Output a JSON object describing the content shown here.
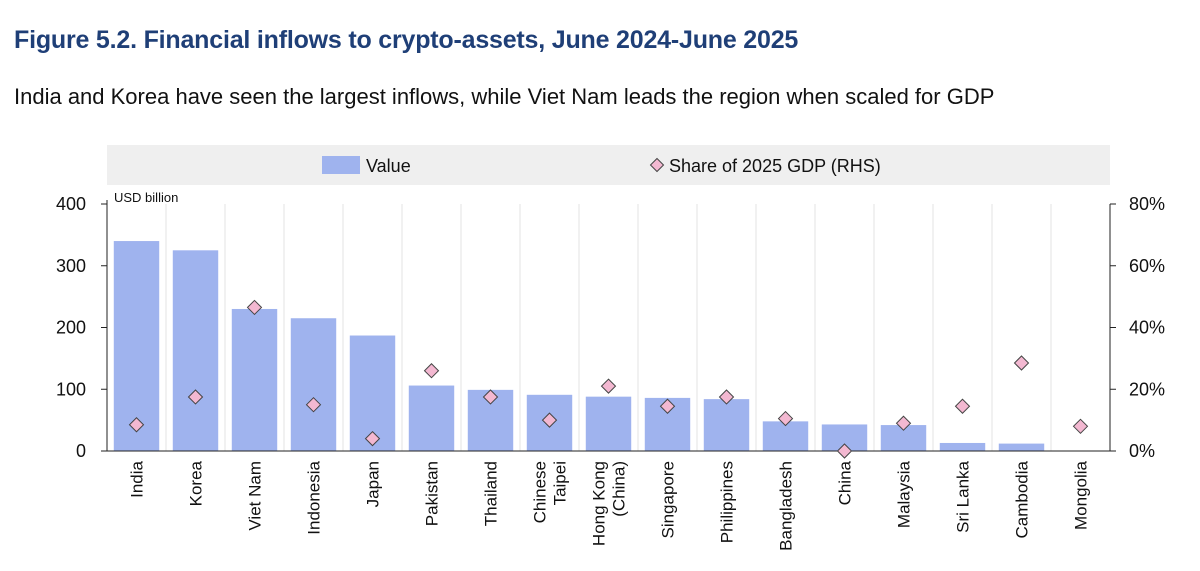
{
  "title": "Figure 5.2. Financial inflows to crypto-assets, June 2024-June 2025",
  "subtitle": "India and Korea have seen the largest inflows, while Viet Nam leads the region when scaled for GDP",
  "colors": {
    "bar": "#9fb3ee",
    "marker_fill": "#f3b8d1",
    "marker_stroke": "#444444",
    "legend_bg": "#efefef",
    "title": "#1f3f77"
  },
  "chart_data": {
    "type": "bar",
    "left_unit": "USD billion",
    "categories": [
      [
        "India"
      ],
      [
        "Korea"
      ],
      [
        "Viet Nam"
      ],
      [
        "Indonesia"
      ],
      [
        "Japan"
      ],
      [
        "Pakistan"
      ],
      [
        "Thailand"
      ],
      [
        "Chinese",
        "Taipei"
      ],
      [
        "Hong Kong",
        "(China)"
      ],
      [
        "Singapore"
      ],
      [
        "Philippines"
      ],
      [
        "Bangladesh"
      ],
      [
        "China"
      ],
      [
        "Malaysia"
      ],
      [
        "Sri Lanka"
      ],
      [
        "Cambodia"
      ],
      [
        "Mongolia"
      ]
    ],
    "series": [
      {
        "name": "Value",
        "kind": "bar",
        "axis": "left",
        "values": [
          340,
          325,
          230,
          215,
          187,
          106,
          99,
          91,
          88,
          86,
          84,
          48,
          43,
          42,
          13,
          12,
          0
        ]
      },
      {
        "name": "Share of 2025 GDP (RHS)",
        "kind": "marker",
        "axis": "right",
        "values": [
          8.5,
          17.5,
          46.5,
          15,
          4,
          26,
          17.5,
          10,
          21,
          14.5,
          17.5,
          10.5,
          0,
          9,
          14.5,
          28.5,
          8
        ]
      }
    ],
    "left_axis": {
      "min": 0,
      "max": 400,
      "ticks": [
        "0",
        "100",
        "200",
        "300",
        "400"
      ]
    },
    "right_axis": {
      "min": 0,
      "max": 80,
      "ticks": [
        "0%",
        "20%",
        "40%",
        "60%",
        "80%"
      ]
    },
    "legend_placement": "top",
    "grid": true
  }
}
